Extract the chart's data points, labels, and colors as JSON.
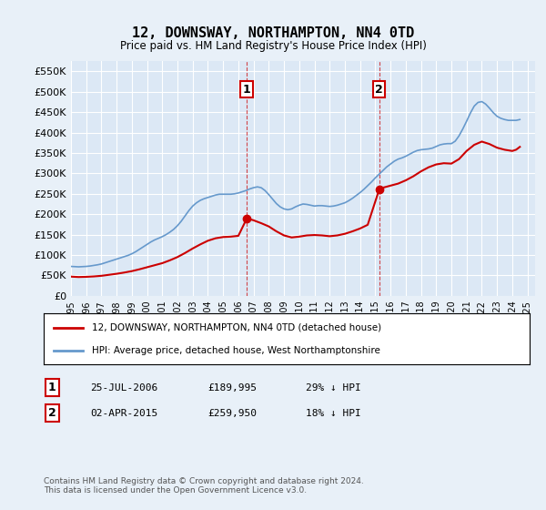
{
  "title": "12, DOWNSWAY, NORTHAMPTON, NN4 0TD",
  "subtitle": "Price paid vs. HM Land Registry's House Price Index (HPI)",
  "ylabel_ticks": [
    "£0",
    "£50K",
    "£100K",
    "£150K",
    "£200K",
    "£250K",
    "£300K",
    "£350K",
    "£400K",
    "£450K",
    "£500K",
    "£550K"
  ],
  "ytick_values": [
    0,
    50000,
    100000,
    150000,
    200000,
    250000,
    300000,
    350000,
    400000,
    450000,
    500000,
    550000
  ],
  "ylim": [
    0,
    575000
  ],
  "xlim_start": 1995.0,
  "xlim_end": 2025.5,
  "legend_label_red": "12, DOWNSWAY, NORTHAMPTON, NN4 0TD (detached house)",
  "legend_label_blue": "HPI: Average price, detached house, West Northamptonshire",
  "sale1_date": "25-JUL-2006",
  "sale1_price": "£189,995",
  "sale1_hpi": "29% ↓ HPI",
  "sale1_year": 2006.56,
  "sale1_value": 189995,
  "sale2_date": "02-APR-2015",
  "sale2_price": "£259,950",
  "sale2_hpi": "18% ↓ HPI",
  "sale2_year": 2015.25,
  "sale2_value": 259950,
  "red_color": "#cc0000",
  "blue_color": "#6699cc",
  "background_color": "#e8f0f8",
  "plot_bg_color": "#dce8f5",
  "grid_color": "#ffffff",
  "footer_text": "Contains HM Land Registry data © Crown copyright and database right 2024.\nThis data is licensed under the Open Government Licence v3.0.",
  "hpi_years": [
    1995.0,
    1995.25,
    1995.5,
    1995.75,
    1996.0,
    1996.25,
    1996.5,
    1996.75,
    1997.0,
    1997.25,
    1997.5,
    1997.75,
    1998.0,
    1998.25,
    1998.5,
    1998.75,
    1999.0,
    1999.25,
    1999.5,
    1999.75,
    2000.0,
    2000.25,
    2000.5,
    2000.75,
    2001.0,
    2001.25,
    2001.5,
    2001.75,
    2002.0,
    2002.25,
    2002.5,
    2002.75,
    2003.0,
    2003.25,
    2003.5,
    2003.75,
    2004.0,
    2004.25,
    2004.5,
    2004.75,
    2005.0,
    2005.25,
    2005.5,
    2005.75,
    2006.0,
    2006.25,
    2006.5,
    2006.75,
    2007.0,
    2007.25,
    2007.5,
    2007.75,
    2008.0,
    2008.25,
    2008.5,
    2008.75,
    2009.0,
    2009.25,
    2009.5,
    2009.75,
    2010.0,
    2010.25,
    2010.5,
    2010.75,
    2011.0,
    2011.25,
    2011.5,
    2011.75,
    2012.0,
    2012.25,
    2012.5,
    2012.75,
    2013.0,
    2013.25,
    2013.5,
    2013.75,
    2014.0,
    2014.25,
    2014.5,
    2014.75,
    2015.0,
    2015.25,
    2015.5,
    2015.75,
    2016.0,
    2016.25,
    2016.5,
    2016.75,
    2017.0,
    2017.25,
    2017.5,
    2017.75,
    2018.0,
    2018.25,
    2018.5,
    2018.75,
    2019.0,
    2019.25,
    2019.5,
    2019.75,
    2020.0,
    2020.25,
    2020.5,
    2020.75,
    2021.0,
    2021.25,
    2021.5,
    2021.75,
    2022.0,
    2022.25,
    2022.5,
    2022.75,
    2023.0,
    2023.25,
    2023.5,
    2023.75,
    2024.0,
    2024.25,
    2024.5
  ],
  "hpi_values": [
    72000,
    71500,
    71000,
    71500,
    72000,
    73000,
    74500,
    76000,
    78000,
    81000,
    84000,
    87000,
    90000,
    93000,
    96000,
    99000,
    103000,
    108000,
    114000,
    120000,
    126000,
    132000,
    137000,
    141000,
    145000,
    150000,
    156000,
    163000,
    172000,
    183000,
    196000,
    209000,
    220000,
    228000,
    234000,
    238000,
    241000,
    244000,
    247000,
    249000,
    249000,
    249000,
    249000,
    250000,
    252000,
    255000,
    258000,
    262000,
    265000,
    267000,
    265000,
    258000,
    248000,
    237000,
    226000,
    218000,
    213000,
    211000,
    213000,
    218000,
    222000,
    225000,
    224000,
    222000,
    220000,
    221000,
    221000,
    220000,
    219000,
    220000,
    222000,
    225000,
    228000,
    233000,
    239000,
    246000,
    253000,
    261000,
    270000,
    279000,
    289000,
    298000,
    307000,
    316000,
    323000,
    330000,
    335000,
    338000,
    342000,
    347000,
    352000,
    356000,
    358000,
    359000,
    360000,
    362000,
    366000,
    370000,
    372000,
    373000,
    373000,
    379000,
    392000,
    409000,
    428000,
    448000,
    465000,
    474000,
    476000,
    470000,
    460000,
    449000,
    440000,
    435000,
    432000,
    430000,
    430000,
    430000,
    432000
  ],
  "red_years": [
    1995.0,
    1995.5,
    1996.0,
    1996.5,
    1997.0,
    1997.5,
    1998.0,
    1998.5,
    1999.0,
    1999.5,
    2000.0,
    2000.5,
    2001.0,
    2001.5,
    2002.0,
    2002.5,
    2003.0,
    2003.5,
    2004.0,
    2004.5,
    2005.0,
    2005.5,
    2006.0,
    2006.56,
    2007.0,
    2007.5,
    2008.0,
    2008.5,
    2009.0,
    2009.5,
    2010.0,
    2010.5,
    2011.0,
    2011.5,
    2012.0,
    2012.5,
    2013.0,
    2013.5,
    2014.0,
    2014.5,
    2015.25,
    2015.5,
    2016.0,
    2016.5,
    2017.0,
    2017.5,
    2018.0,
    2018.5,
    2019.0,
    2019.5,
    2020.0,
    2020.5,
    2021.0,
    2021.5,
    2022.0,
    2022.5,
    2023.0,
    2023.5,
    2024.0,
    2024.25,
    2024.5
  ],
  "red_values": [
    47000,
    46000,
    46500,
    47500,
    49000,
    51500,
    54000,
    57000,
    60500,
    65000,
    70000,
    75000,
    80000,
    87000,
    95000,
    105000,
    116000,
    126000,
    135000,
    141000,
    144000,
    145000,
    147000,
    189995,
    185000,
    178000,
    170000,
    158000,
    148000,
    143000,
    145000,
    148000,
    149000,
    148000,
    146000,
    148000,
    152000,
    158000,
    165000,
    174000,
    259950,
    265000,
    270000,
    275000,
    283000,
    293000,
    305000,
    315000,
    322000,
    325000,
    324000,
    335000,
    355000,
    370000,
    378000,
    372000,
    363000,
    358000,
    355000,
    358000,
    365000
  ]
}
